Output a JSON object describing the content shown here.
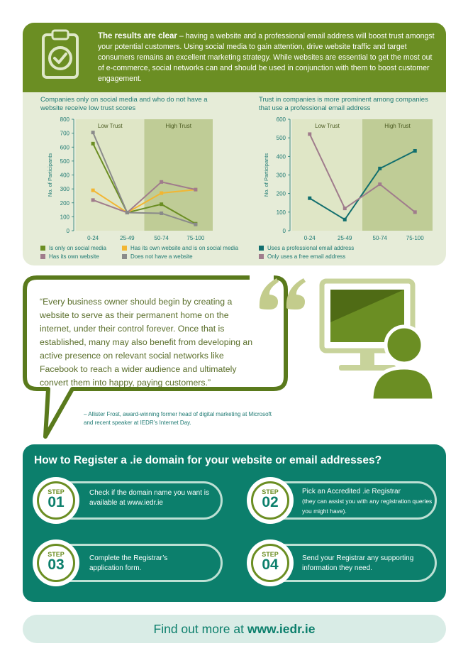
{
  "intro": {
    "bold": "The results are clear",
    "text": " – having a website and a professional email address will boost trust amongst your potential customers. Using social media to gain attention, drive website traffic and target consumers remains an excellent marketing strategy. While websites are essential to get the most out of e-commerce, social networks can and should be used in conjunction with them to boost customer engagement.",
    "icon": "clipboard-check-icon"
  },
  "chart_data": [
    {
      "type": "line",
      "title": "Companies only on social media and who do not have a website receive low trust scores",
      "ylabel": "No. of Participants",
      "xlabel": "",
      "categories": [
        "0-24",
        "25-49",
        "50-74",
        "75-100"
      ],
      "ylim": [
        0,
        800
      ],
      "yticks": [
        0,
        100,
        200,
        300,
        400,
        500,
        600,
        700,
        800
      ],
      "bands": [
        {
          "label": "Low Trust",
          "shade": "light"
        },
        {
          "label": "High Trust",
          "shade": "dark"
        }
      ],
      "series": [
        {
          "name": "Is only on social media",
          "color": "#6b8e23",
          "values": [
            625,
            130,
            190,
            50
          ]
        },
        {
          "name": "Has its own website and is on social media",
          "color": "#f2b632",
          "values": [
            290,
            130,
            270,
            295
          ]
        },
        {
          "name": "Has its own website",
          "color": "#a07c8c",
          "values": [
            220,
            130,
            350,
            295
          ]
        },
        {
          "name": "Does not have a website",
          "color": "#8a8a8a",
          "values": [
            705,
            130,
            125,
            45
          ]
        }
      ],
      "legend_position": "bottom"
    },
    {
      "type": "line",
      "title": "Trust in companies is more prominent among companies that use a professional email address",
      "ylabel": "No. of Participants",
      "xlabel": "",
      "categories": [
        "0-24",
        "25-49",
        "50-74",
        "75-100"
      ],
      "ylim": [
        0,
        600
      ],
      "yticks": [
        0,
        100,
        200,
        300,
        400,
        500,
        600
      ],
      "bands": [
        {
          "label": "Low Trust",
          "shade": "light"
        },
        {
          "label": "High Trust",
          "shade": "dark"
        }
      ],
      "series": [
        {
          "name": "Uses a professional email address",
          "color": "#126f6e",
          "values": [
            175,
            60,
            335,
            430
          ]
        },
        {
          "name": "Only uses a free email address",
          "color": "#a07c8c",
          "values": [
            520,
            120,
            250,
            100
          ]
        }
      ],
      "legend_position": "bottom"
    }
  ],
  "quote": {
    "text": "“Every business owner should begin by creating a website to serve as their permanent home on the internet, under their control forever. Once that is established, many may also benefit from developing an active presence on relevant social networks like Facebook to reach a wider audience and ultimately convert them into happy, paying customers.”",
    "credit": "– Allister Frost, award-winning former head of digital marketing at Microsoft and recent speaker at IEDR’s Internet Day.",
    "icons": [
      "quote-mark-icon",
      "computer-monitor-icon",
      "person-icon"
    ]
  },
  "register": {
    "title": "How to Register a .ie domain for your website or email addresses?",
    "steps": [
      {
        "word": "STEP",
        "num": "01",
        "text": "Check if the domain name you want is available at www.iedr.ie",
        "note": ""
      },
      {
        "word": "STEP",
        "num": "02",
        "text": "Pick an Accredited .ie Registrar",
        "note": "(they can assist you with any registration queries you might have)."
      },
      {
        "word": "STEP",
        "num": "03",
        "text": "Complete the Registrar’s application form.",
        "note": ""
      },
      {
        "word": "STEP",
        "num": "04",
        "text": "Send your Registrar any supporting information they need.",
        "note": ""
      }
    ]
  },
  "footer": {
    "prefix": "Find out more at ",
    "link": "www.iedr.ie"
  },
  "colors": {
    "olive": "#6b8e23",
    "teal": "#0c7f6c",
    "pale": "#e6ecd8"
  }
}
